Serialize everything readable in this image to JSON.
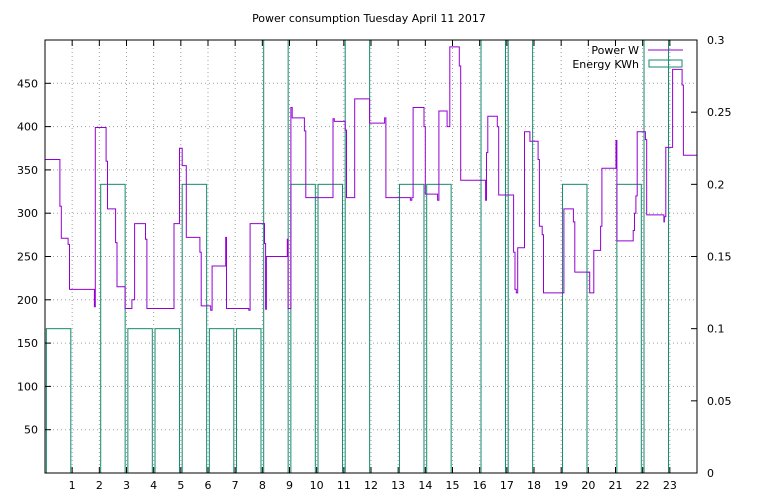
{
  "chart_data": {
    "title": "Power consumption Tuesday April 11 2017",
    "type": "line",
    "xlim": [
      0,
      24
    ],
    "x_ticks": [
      "1",
      "2",
      "3",
      "4",
      "5",
      "6",
      "7",
      "8",
      "9",
      "10",
      "11",
      "12",
      "13",
      "14",
      "15",
      "16",
      "17",
      "18",
      "19",
      "20",
      "21",
      "22",
      "23"
    ],
    "y_left": {
      "range": [
        0,
        500
      ],
      "ticks": [
        50,
        100,
        150,
        200,
        250,
        300,
        350,
        400,
        450
      ]
    },
    "y_right": {
      "range": [
        0,
        0.3
      ],
      "ticks": [
        "0",
        "0.05",
        "0.1",
        "0.15",
        "0.2",
        "0.25",
        "0.3"
      ]
    },
    "grid": true,
    "legend": {
      "placement": "top-right"
    },
    "series": [
      {
        "name": "Power W",
        "axis": "left",
        "color": "#9400d3",
        "style": "step",
        "points": [
          [
            0.0,
            362
          ],
          [
            0.5,
            362
          ],
          [
            0.55,
            308
          ],
          [
            0.6,
            271
          ],
          [
            0.8,
            271
          ],
          [
            0.85,
            264
          ],
          [
            0.9,
            212
          ],
          [
            1.8,
            212
          ],
          [
            1.82,
            192
          ],
          [
            1.85,
            399
          ],
          [
            2.2,
            399
          ],
          [
            2.25,
            360
          ],
          [
            2.3,
            305
          ],
          [
            2.55,
            305
          ],
          [
            2.6,
            266
          ],
          [
            2.65,
            215
          ],
          [
            2.9,
            215
          ],
          [
            2.95,
            190
          ],
          [
            3.15,
            190
          ],
          [
            3.2,
            200
          ],
          [
            3.3,
            288
          ],
          [
            3.65,
            288
          ],
          [
            3.7,
            270
          ],
          [
            3.75,
            190
          ],
          [
            4.7,
            190
          ],
          [
            4.75,
            288
          ],
          [
            4.9,
            288
          ],
          [
            4.95,
            375
          ],
          [
            5.05,
            355
          ],
          [
            5.2,
            272
          ],
          [
            5.65,
            272
          ],
          [
            5.7,
            255
          ],
          [
            5.75,
            193
          ],
          [
            6.05,
            193
          ],
          [
            6.1,
            188
          ],
          [
            6.15,
            239
          ],
          [
            6.6,
            239
          ],
          [
            6.65,
            272
          ],
          [
            6.68,
            190
          ],
          [
            7.45,
            190
          ],
          [
            7.5,
            188
          ],
          [
            7.55,
            288
          ],
          [
            8.05,
            288
          ],
          [
            8.08,
            265
          ],
          [
            8.12,
            189
          ],
          [
            8.15,
            250
          ],
          [
            8.9,
            250
          ],
          [
            8.92,
            270
          ],
          [
            8.95,
            190
          ],
          [
            9.0,
            190
          ],
          [
            9.05,
            422
          ],
          [
            9.1,
            410
          ],
          [
            9.5,
            410
          ],
          [
            9.55,
            395
          ],
          [
            9.6,
            318
          ],
          [
            10.55,
            318
          ],
          [
            10.6,
            409
          ],
          [
            10.65,
            406
          ],
          [
            11.0,
            406
          ],
          [
            11.05,
            396
          ],
          [
            11.1,
            318
          ],
          [
            11.35,
            318
          ],
          [
            11.4,
            432
          ],
          [
            11.9,
            432
          ],
          [
            11.95,
            404
          ],
          [
            12.45,
            404
          ],
          [
            12.5,
            410
          ],
          [
            12.55,
            318
          ],
          [
            13.4,
            318
          ],
          [
            13.45,
            315
          ],
          [
            13.5,
            318
          ],
          [
            13.55,
            422
          ],
          [
            13.9,
            422
          ],
          [
            13.95,
            400
          ],
          [
            14.0,
            322
          ],
          [
            14.4,
            322
          ],
          [
            14.45,
            315
          ],
          [
            14.5,
            418
          ],
          [
            14.75,
            418
          ],
          [
            14.8,
            400
          ],
          [
            14.85,
            400
          ],
          [
            14.9,
            492
          ],
          [
            15.2,
            492
          ],
          [
            15.25,
            470
          ],
          [
            15.3,
            338
          ],
          [
            16.2,
            338
          ],
          [
            16.22,
            315
          ],
          [
            16.25,
            370
          ],
          [
            16.3,
            412
          ],
          [
            16.6,
            412
          ],
          [
            16.65,
            400
          ],
          [
            16.7,
            321
          ],
          [
            17.2,
            321
          ],
          [
            17.25,
            255
          ],
          [
            17.3,
            212
          ],
          [
            17.35,
            208
          ],
          [
            17.4,
            260
          ],
          [
            17.6,
            260
          ],
          [
            17.65,
            394
          ],
          [
            17.8,
            394
          ],
          [
            17.85,
            383
          ],
          [
            18.1,
            383
          ],
          [
            18.15,
            362
          ],
          [
            18.2,
            285
          ],
          [
            18.3,
            275
          ],
          [
            18.35,
            208
          ],
          [
            19.05,
            208
          ],
          [
            19.1,
            305
          ],
          [
            19.4,
            305
          ],
          [
            19.45,
            290
          ],
          [
            19.5,
            232
          ],
          [
            20.0,
            232
          ],
          [
            20.05,
            208
          ],
          [
            20.15,
            208
          ],
          [
            20.2,
            257
          ],
          [
            20.4,
            257
          ],
          [
            20.45,
            285
          ],
          [
            20.5,
            352
          ],
          [
            21.0,
            352
          ],
          [
            21.02,
            384
          ],
          [
            21.05,
            268
          ],
          [
            21.6,
            268
          ],
          [
            21.65,
            280
          ],
          [
            21.7,
            300
          ],
          [
            21.75,
            320
          ],
          [
            21.8,
            394
          ],
          [
            22.05,
            394
          ],
          [
            22.1,
            385
          ],
          [
            22.15,
            298
          ],
          [
            22.75,
            298
          ],
          [
            22.78,
            290
          ],
          [
            22.8,
            296
          ],
          [
            22.85,
            376
          ],
          [
            23.05,
            376
          ],
          [
            23.1,
            466
          ],
          [
            23.4,
            466
          ],
          [
            23.45,
            448
          ],
          [
            23.5,
            367
          ],
          [
            24.0,
            367
          ]
        ]
      },
      {
        "name": "Energy KWh",
        "axis": "right",
        "color": "#138a6d",
        "style": "boxes",
        "boxes": [
          [
            0,
            0.1
          ],
          [
            1,
            0
          ],
          [
            2,
            0.2
          ],
          [
            3,
            0.1
          ],
          [
            4,
            0.1
          ],
          [
            5,
            0.2
          ],
          [
            6,
            0.1
          ],
          [
            7,
            0.1
          ],
          [
            8,
            0.3
          ],
          [
            9,
            0.2
          ],
          [
            10,
            0.2
          ],
          [
            11,
            0.3
          ],
          [
            12,
            0
          ],
          [
            13,
            0.2
          ],
          [
            14,
            0.2
          ],
          [
            15,
            0
          ],
          [
            16,
            0.3
          ],
          [
            17,
            0.3
          ],
          [
            18,
            0
          ],
          [
            19,
            0.2
          ],
          [
            20,
            0
          ],
          [
            21,
            0.2
          ],
          [
            22,
            0.3
          ],
          [
            23,
            0
          ]
        ]
      }
    ]
  }
}
